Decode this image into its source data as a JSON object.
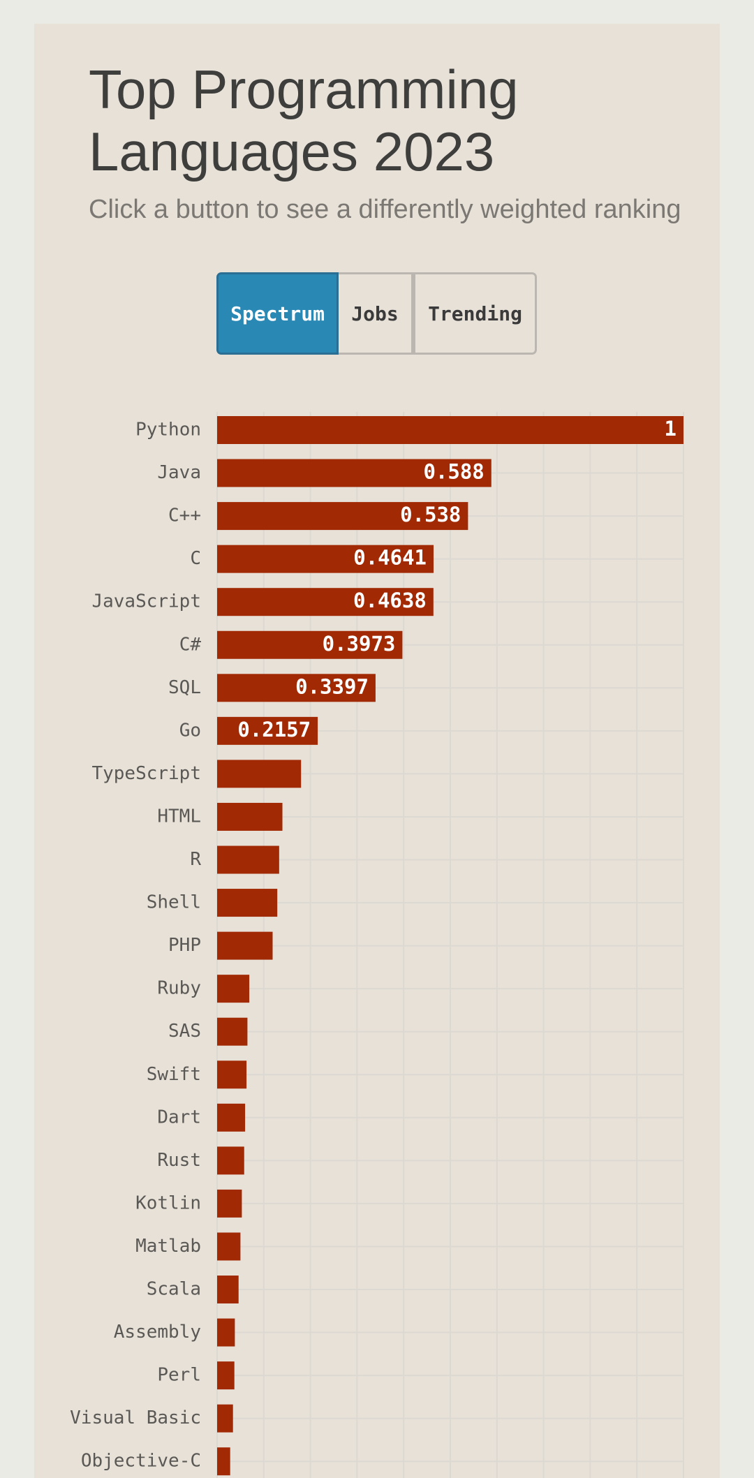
{
  "chart_data": {
    "type": "bar",
    "orientation": "horizontal",
    "title": "Top Programming Languages 2023",
    "subtitle": "Click a button to see a differently weighted ranking",
    "categories": [
      "Python",
      "Java",
      "C++",
      "C",
      "JavaScript",
      "C#",
      "SQL",
      "Go",
      "TypeScript",
      "HTML",
      "R",
      "Shell",
      "PHP",
      "Ruby",
      "SAS",
      "Swift",
      "Dart",
      "Rust",
      "Kotlin",
      "Matlab",
      "Scala",
      "Assembly",
      "Perl",
      "Visual Basic",
      "Objective-C"
    ],
    "values": [
      1,
      0.588,
      0.538,
      0.4641,
      0.4638,
      0.3973,
      0.3397,
      0.2157,
      0.18,
      0.14,
      0.133,
      0.129,
      0.119,
      0.069,
      0.065,
      0.063,
      0.06,
      0.058,
      0.053,
      0.05,
      0.046,
      0.038,
      0.037,
      0.034,
      0.028
    ],
    "value_labels": [
      "1",
      "0.588",
      "0.538",
      "0.4641",
      "0.4638",
      "0.3973",
      "0.3397",
      "0.2157",
      null,
      null,
      null,
      null,
      null,
      null,
      null,
      null,
      null,
      null,
      null,
      null,
      null,
      null,
      null,
      null,
      null
    ],
    "color": "#a12a05",
    "xlim": [
      0,
      1
    ],
    "xticks": [
      0,
      0.1,
      0.2,
      0.3,
      0.4,
      0.5,
      0.6,
      0.7,
      0.8,
      0.9,
      1
    ],
    "grid": true
  },
  "controls": {
    "buttons": [
      "Spectrum",
      "Jobs",
      "Trending"
    ]
  }
}
